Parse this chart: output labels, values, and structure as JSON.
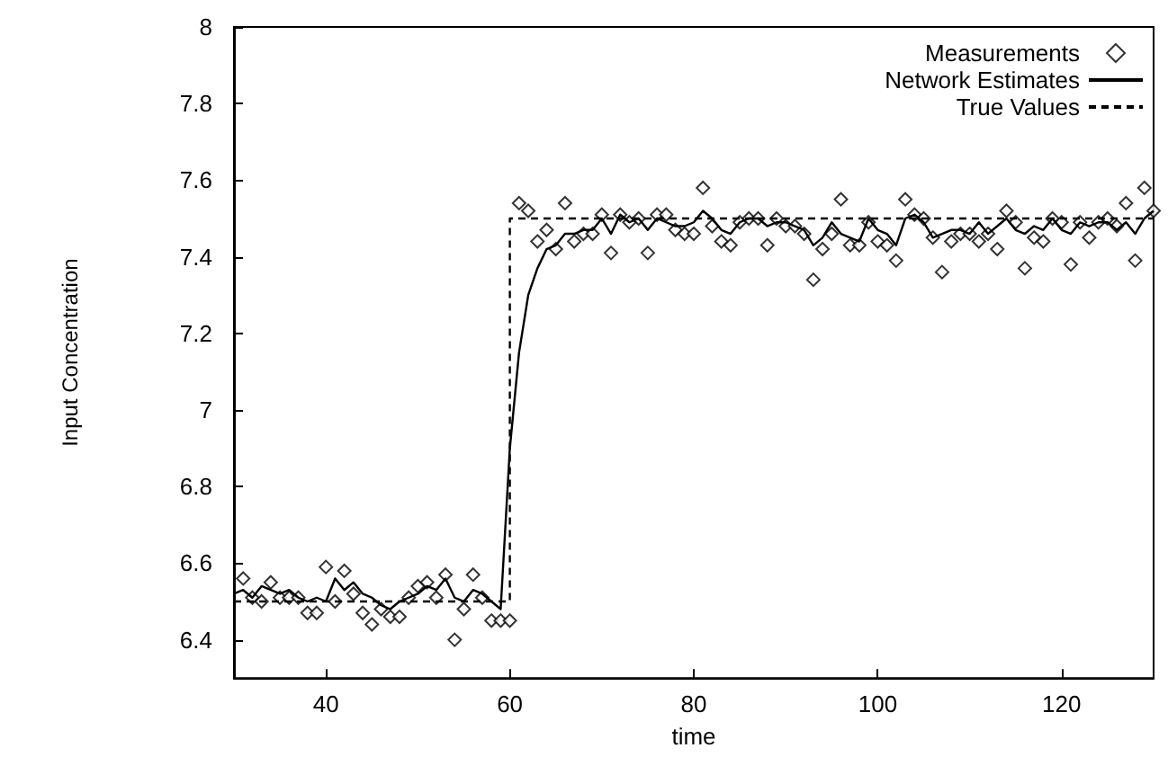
{
  "chart_data": {
    "type": "line",
    "xlabel": "time",
    "ylabel": "Input Concentration",
    "xlim": [
      30,
      130
    ],
    "xticks": [
      40,
      60,
      80,
      100,
      120
    ],
    "ylim": [
      6.3,
      8
    ],
    "yticks": [
      6.4,
      6.6,
      6.8,
      7,
      7.2,
      7.4,
      7.6,
      7.8,
      8
    ],
    "grid": false,
    "legend": "top right",
    "series": [
      {
        "name": "Measurements",
        "type": "scatter",
        "marker": "diamond",
        "color": "#000000",
        "x": [
          31,
          32,
          33,
          34,
          35,
          36,
          37,
          38,
          39,
          40,
          41,
          42,
          43,
          44,
          45,
          46,
          47,
          48,
          49,
          50,
          51,
          52,
          53,
          54,
          55,
          56,
          57,
          58,
          59,
          60,
          61,
          62,
          63,
          64,
          65,
          66,
          67,
          68,
          69,
          70,
          71,
          72,
          73,
          74,
          75,
          76,
          77,
          78,
          79,
          80,
          81,
          82,
          83,
          84,
          85,
          86,
          87,
          88,
          89,
          90,
          91,
          92,
          93,
          94,
          95,
          96,
          97,
          98,
          99,
          100,
          101,
          102,
          103,
          104,
          105,
          106,
          107,
          108,
          109,
          110,
          111,
          112,
          113,
          114,
          115,
          116,
          117,
          118,
          119,
          120,
          121,
          122,
          123,
          124,
          125,
          126,
          127,
          128,
          129,
          130
        ],
        "values": [
          6.56,
          6.51,
          6.5,
          6.55,
          6.51,
          6.51,
          6.51,
          6.47,
          6.47,
          6.59,
          6.5,
          6.58,
          6.52,
          6.47,
          6.44,
          6.48,
          6.46,
          6.46,
          6.51,
          6.54,
          6.55,
          6.51,
          6.57,
          6.4,
          6.48,
          6.57,
          6.51,
          6.45,
          6.45,
          6.45,
          7.54,
          7.52,
          7.44,
          7.47,
          7.42,
          7.54,
          7.44,
          7.46,
          7.46,
          7.51,
          7.41,
          7.51,
          7.49,
          7.5,
          7.41,
          7.51,
          7.51,
          7.47,
          7.46,
          7.46,
          7.58,
          7.48,
          7.44,
          7.43,
          7.49,
          7.5,
          7.5,
          7.43,
          7.5,
          7.48,
          7.48,
          7.46,
          7.34,
          7.42,
          7.46,
          7.55,
          7.43,
          7.43,
          7.49,
          7.44,
          7.43,
          7.39,
          7.55,
          7.51,
          7.5,
          7.45,
          7.36,
          7.44,
          7.46,
          7.46,
          7.44,
          7.46,
          7.42,
          7.52,
          7.49,
          7.37,
          7.45,
          7.44,
          7.5,
          7.49,
          7.38,
          7.49,
          7.45,
          7.49,
          7.5,
          7.48,
          7.54,
          7.39,
          7.58,
          7.52
        ]
      },
      {
        "name": "Network Estimates",
        "type": "line",
        "marker": "none",
        "line_style": "solid",
        "color": "#000000",
        "x": [
          30,
          31,
          32,
          33,
          34,
          35,
          36,
          37,
          38,
          39,
          40,
          41,
          42,
          43,
          44,
          45,
          46,
          47,
          48,
          49,
          50,
          51,
          52,
          53,
          54,
          55,
          56,
          57,
          58,
          59,
          60,
          61,
          62,
          63,
          64,
          65,
          66,
          67,
          68,
          69,
          70,
          71,
          72,
          73,
          74,
          75,
          76,
          77,
          78,
          79,
          80,
          81,
          82,
          83,
          84,
          85,
          86,
          87,
          88,
          89,
          90,
          91,
          92,
          93,
          94,
          95,
          96,
          97,
          98,
          99,
          100,
          101,
          102,
          103,
          104,
          105,
          106,
          107,
          108,
          109,
          110,
          111,
          112,
          113,
          114,
          115,
          116,
          117,
          118,
          119,
          120,
          121,
          122,
          123,
          124,
          125,
          126,
          127,
          128,
          129,
          130
        ],
        "values": [
          6.52,
          6.53,
          6.51,
          6.54,
          6.53,
          6.52,
          6.53,
          6.51,
          6.5,
          6.51,
          6.5,
          6.56,
          6.53,
          6.55,
          6.52,
          6.51,
          6.49,
          6.48,
          6.5,
          6.51,
          6.52,
          6.54,
          6.53,
          6.56,
          6.51,
          6.5,
          6.53,
          6.52,
          6.5,
          6.48,
          6.9,
          7.15,
          7.3,
          7.37,
          7.42,
          7.43,
          7.46,
          7.46,
          7.47,
          7.47,
          7.5,
          7.46,
          7.51,
          7.49,
          7.5,
          7.47,
          7.5,
          7.49,
          7.48,
          7.48,
          7.49,
          7.52,
          7.5,
          7.47,
          7.46,
          7.49,
          7.5,
          7.5,
          7.48,
          7.49,
          7.49,
          7.48,
          7.47,
          7.43,
          7.45,
          7.49,
          7.46,
          7.45,
          7.44,
          7.5,
          7.47,
          7.46,
          7.43,
          7.5,
          7.51,
          7.49,
          7.45,
          7.46,
          7.47,
          7.47,
          7.46,
          7.49,
          7.46,
          7.48,
          7.5,
          7.47,
          7.46,
          7.48,
          7.47,
          7.5,
          7.47,
          7.46,
          7.49,
          7.48,
          7.49,
          7.49,
          7.47,
          7.49,
          7.46,
          7.5,
          7.52
        ]
      },
      {
        "name": "True Values",
        "type": "line",
        "marker": "none",
        "line_style": "dashed",
        "color": "#000000",
        "x": [
          30,
          60,
          60,
          130
        ],
        "values": [
          6.5,
          6.5,
          7.5,
          7.5
        ]
      }
    ]
  }
}
